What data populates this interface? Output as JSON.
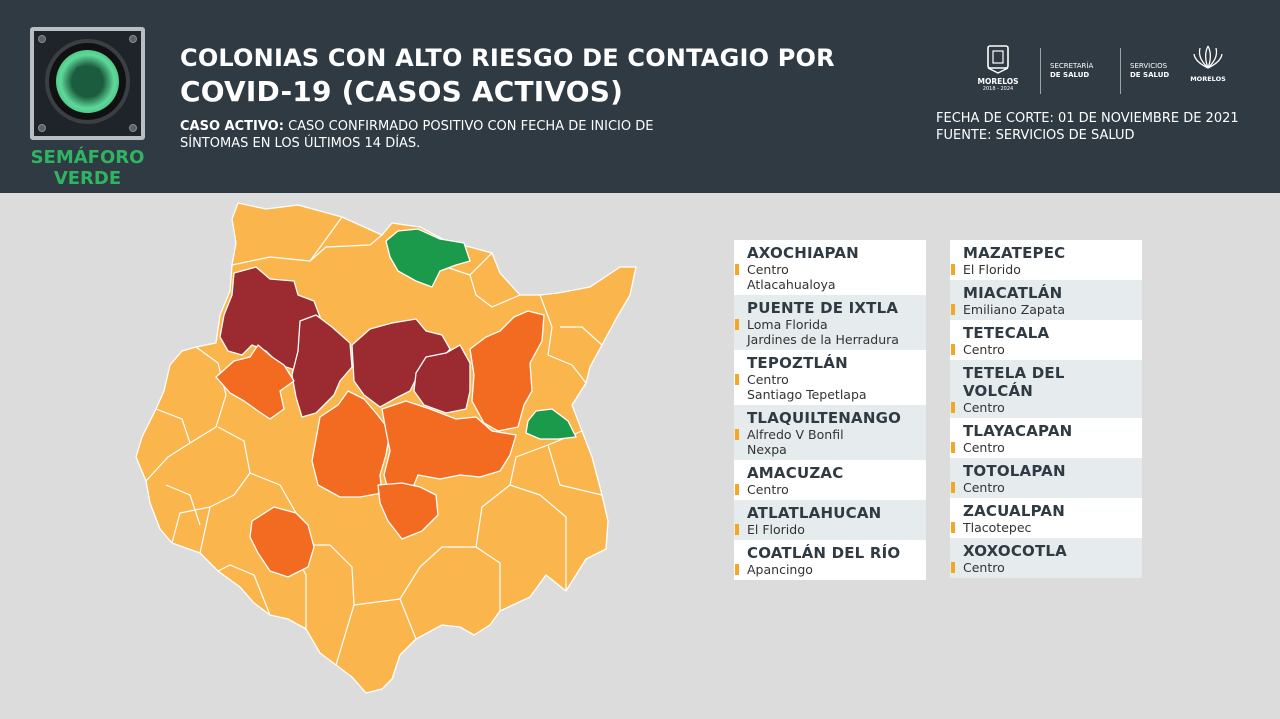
{
  "header": {
    "traffic_light_label_1": "SEMÁFORO",
    "traffic_light_label_2": "VERDE",
    "title_line1": "COLONIAS CON ALTO RIESGO DE CONTAGIO POR",
    "title_line2": "COVID-19 (CASOS ACTIVOS)",
    "definition_label": "CASO ACTIVO:",
    "definition_text": " CASO CONFIRMADO POSITIVO CON FECHA DE INICIO DE SÍNTOMAS EN LOS ÚLTIMOS 14 DÍAS.",
    "logo_morelos": "MORELOS",
    "logo_morelos_years": "2018 - 2024",
    "logo_secretaria_1": "SECRETARÍA",
    "logo_secretaria_2": "DE SALUD",
    "logo_servicios_1": "SERVICIOS",
    "logo_servicios_2": "DE SALUD",
    "logo_morelos_2": "MORELOS",
    "fecha_corte": "FECHA DE CORTE: 01 DE NOVIEMBRE DE 2021",
    "fuente": "FUENTE: SERVICIOS DE SALUD"
  },
  "colors": {
    "header_bg": "#2f3a43",
    "green": "#1a9a4a",
    "light_orange": "#fbb54d",
    "orange": "#f26b21",
    "dark_red": "#9c2a31",
    "accent_bar": "#f5a623"
  },
  "list_left": [
    {
      "municipio": "AXOCHIAPAN",
      "colonias": [
        "Centro",
        "Atlacahualoya"
      ]
    },
    {
      "municipio": "PUENTE DE IXTLA",
      "colonias": [
        "Loma Florida",
        "Jardines de la Herradura"
      ]
    },
    {
      "municipio": "TEPOZTLÁN",
      "colonias": [
        "Centro",
        "Santiago Tepetlapa"
      ]
    },
    {
      "municipio": "TLAQUILTENANGO",
      "colonias": [
        "Alfredo V Bonfil",
        "Nexpa"
      ]
    },
    {
      "municipio": "AMACUZAC",
      "colonias": [
        "Centro"
      ]
    },
    {
      "municipio": "ATLATLAHUCAN",
      "colonias": [
        "El Florido"
      ]
    },
    {
      "municipio": "COATLÁN DEL RÍO",
      "colonias": [
        "Apancingo"
      ]
    }
  ],
  "list_right": [
    {
      "municipio": "MAZATEPEC",
      "colonias": [
        "El Florido"
      ]
    },
    {
      "municipio": "MIACATLÁN",
      "colonias": [
        "Emiliano Zapata"
      ]
    },
    {
      "municipio": "TETECALA",
      "colonias": [
        "Centro"
      ]
    },
    {
      "municipio": "TETELA DEL VOLCÁN",
      "colonias": [
        "Centro"
      ]
    },
    {
      "municipio": "TLAYACAPAN",
      "colonias": [
        "Centro"
      ]
    },
    {
      "municipio": "TOTOLAPAN",
      "colonias": [
        "Centro"
      ]
    },
    {
      "municipio": "ZACUALPAN",
      "colonias": [
        "Tlacotepec"
      ]
    },
    {
      "municipio": "XOXOCOTLA",
      "colonias": [
        "Centro"
      ]
    }
  ]
}
